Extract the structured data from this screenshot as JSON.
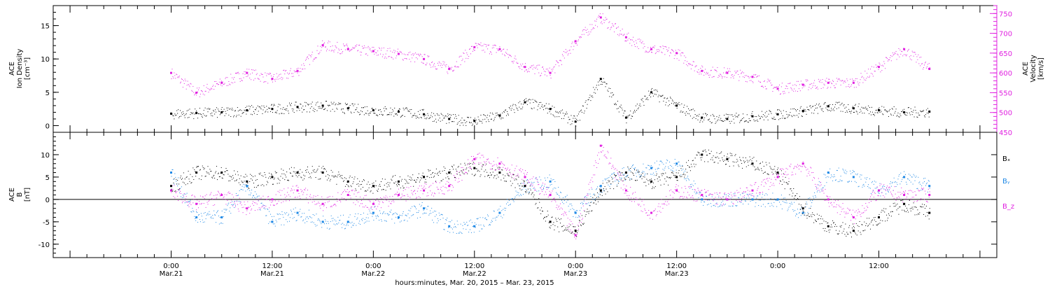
{
  "chart_data": [
    {
      "type": "scatter",
      "panel": "top",
      "ylabel_left": [
        "ACE",
        "Ion Density",
        "[cm⁻³]"
      ],
      "ylabel_right": [
        "ACE",
        "Velocity",
        "[km/s]"
      ],
      "ylim_left": [
        -1,
        18
      ],
      "yticks_left": [
        "0",
        "5",
        "10",
        "15"
      ],
      "ylim_right": [
        450,
        770
      ],
      "yticks_right": [
        "450",
        "500",
        "550",
        "600",
        "650",
        "700",
        "750"
      ],
      "colors": {
        "density": "#000000",
        "velocity": "#e020e0"
      },
      "series": [
        {
          "axis": "left",
          "color": "#000000",
          "x": [
            0,
            3,
            6,
            9,
            12,
            15,
            18,
            21,
            24,
            27,
            30,
            33,
            36,
            39,
            42,
            45,
            48,
            51,
            54,
            57,
            60,
            63,
            66,
            69,
            72,
            75,
            78,
            81,
            84,
            87,
            90
          ],
          "y": [
            1.8,
            1.9,
            2.0,
            2.3,
            2.5,
            2.8,
            3.0,
            2.6,
            2.3,
            2.1,
            1.7,
            1.0,
            0.7,
            1.5,
            3.5,
            2.5,
            0.6,
            7.0,
            1.2,
            5.0,
            3.0,
            1.2,
            1.0,
            1.4,
            1.7,
            2.2,
            2.9,
            2.6,
            2.3,
            2.0,
            2.1
          ]
        },
        {
          "axis": "right",
          "color": "#e020e0",
          "x": [
            0,
            3,
            6,
            9,
            12,
            15,
            18,
            21,
            24,
            27,
            30,
            33,
            36,
            39,
            42,
            45,
            48,
            51,
            54,
            57,
            60,
            63,
            66,
            69,
            72,
            75,
            78,
            81,
            84,
            87,
            90
          ],
          "y": [
            600,
            550,
            575,
            600,
            585,
            605,
            670,
            660,
            655,
            648,
            635,
            610,
            665,
            660,
            615,
            600,
            680,
            740,
            690,
            660,
            650,
            605,
            600,
            590,
            560,
            570,
            575,
            575,
            615,
            660,
            610
          ]
        }
      ]
    },
    {
      "type": "scatter",
      "panel": "bottom",
      "ylabel": [
        "ACE",
        "B",
        "[nT]"
      ],
      "ylim": [
        -13,
        15
      ],
      "yticks": [
        "-10",
        "-5",
        "0",
        "5",
        "10"
      ],
      "zero_line": true,
      "legend": [
        "Bₓ",
        "Bᵧ",
        "B_z"
      ],
      "legend_placement": "right",
      "series": [
        {
          "name": "Bₓ",
          "color": "#000000",
          "x": [
            0,
            3,
            6,
            9,
            12,
            15,
            18,
            21,
            24,
            27,
            30,
            33,
            36,
            39,
            42,
            45,
            48,
            51,
            54,
            57,
            60,
            63,
            66,
            69,
            72,
            75,
            78,
            81,
            84,
            87,
            90
          ],
          "y": [
            3,
            6,
            6,
            4,
            5,
            6,
            6,
            4,
            3,
            4,
            5,
            6,
            7,
            6,
            3,
            -5,
            -7,
            2,
            6,
            4,
            5,
            10,
            9,
            8,
            6,
            -2,
            -6,
            -7,
            -4,
            -1,
            -3
          ]
        },
        {
          "name": "Bᵧ",
          "color": "#1e88e5",
          "x": [
            0,
            3,
            6,
            9,
            12,
            15,
            18,
            21,
            24,
            27,
            30,
            33,
            36,
            39,
            42,
            45,
            48,
            51,
            54,
            57,
            60,
            63,
            66,
            69,
            72,
            75,
            78,
            81,
            84,
            87,
            90
          ],
          "y": [
            6,
            -4,
            -4,
            3,
            -5,
            -3,
            -5,
            -5,
            -3,
            -4,
            -2,
            -6,
            -6,
            -3,
            3,
            4,
            -3,
            3,
            6,
            7,
            8,
            0,
            0,
            0,
            0,
            -3,
            6,
            5,
            2,
            5,
            3
          ]
        },
        {
          "name": "B_z",
          "color": "#e020e0",
          "x": [
            0,
            3,
            6,
            9,
            12,
            15,
            18,
            21,
            24,
            27,
            30,
            33,
            36,
            39,
            42,
            45,
            48,
            51,
            54,
            57,
            60,
            63,
            66,
            69,
            72,
            75,
            78,
            81,
            84,
            87,
            90
          ],
          "y": [
            2,
            -1,
            1,
            -2,
            0,
            2,
            -1,
            1,
            -1,
            1,
            2,
            3,
            9,
            8,
            5,
            1,
            -8,
            12,
            2,
            -3,
            2,
            1,
            0,
            2,
            5,
            8,
            0,
            -4,
            2,
            1,
            1
          ]
        }
      ]
    }
  ],
  "x_axis": {
    "xlim_hours": [
      -14,
      98
    ],
    "ticks_hours": [
      0,
      12,
      24,
      36,
      48,
      60,
      72,
      84
    ],
    "tick_labels_time": [
      "0:00",
      "12:00",
      "0:00",
      "12:00",
      "0:00",
      "12:00",
      "0:00",
      "12:00"
    ],
    "tick_labels_date": [
      "Mar.21",
      "Mar.21",
      "Mar.22",
      "Mar.22",
      "Mar.23",
      "Mar.23"
    ],
    "xlabel": "hours:minutes, Mar. 20, 2015 – Mar. 23, 2015"
  }
}
